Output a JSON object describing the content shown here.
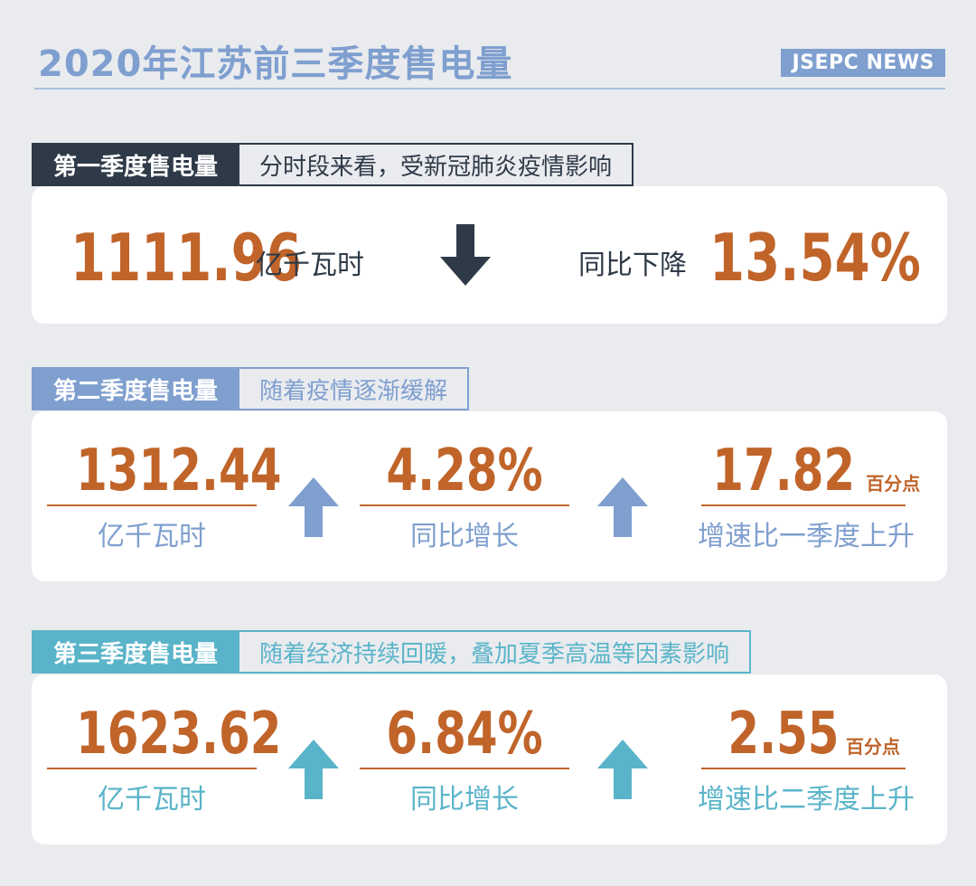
{
  "header": {
    "title": "2020年江苏前三季度售电量",
    "brand": "JSEPC NEWS"
  },
  "colors": {
    "accent_orange": "#c0642a",
    "q1": "#2f3a48",
    "q2": "#7f9fcf",
    "q3": "#5ab4c9",
    "background": "#e9ebef"
  },
  "q1": {
    "tag": "第一季度售电量",
    "note": "分时段来看，受新冠肺炎疫情影响",
    "value": "1111.96",
    "unit": "亿千瓦时",
    "arrow_icon": "arrow-down-icon",
    "change_label": "同比下降",
    "change_value": "13.54%"
  },
  "q2": {
    "tag": "第二季度售电量",
    "note": "随着疫情逐渐缓解",
    "value": "1312.44",
    "value_caption": "亿千瓦时",
    "growth": "4.28%",
    "growth_caption": "同比增长",
    "points": "17.82",
    "points_suffix": "百分点",
    "points_caption": "增速比一季度上升",
    "arrow_icon": "arrow-up-icon"
  },
  "q3": {
    "tag": "第三季度售电量",
    "note": "随着经济持续回暖，叠加夏季高温等因素影响",
    "value": "1623.62",
    "value_caption": "亿千瓦时",
    "growth": "6.84%",
    "growth_caption": "同比增长",
    "points": "2.55",
    "points_suffix": "百分点",
    "points_caption": "增速比二季度上升",
    "arrow_icon": "arrow-up-icon"
  }
}
